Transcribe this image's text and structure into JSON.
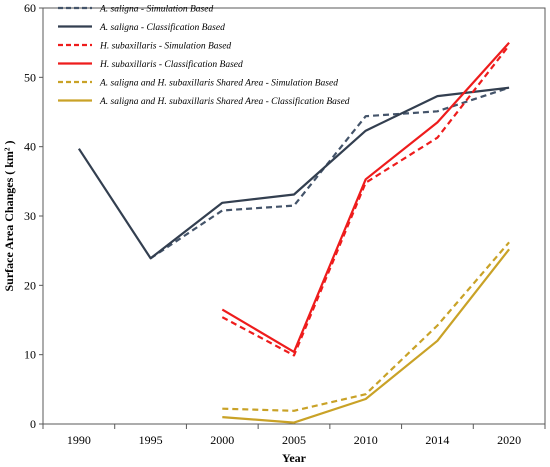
{
  "chart_data": {
    "type": "line",
    "xlabel": "Year",
    "ylabel": "Surface Area Changes ( km² )",
    "categories": [
      "1990",
      "1995",
      "2000",
      "2005",
      "2010",
      "2014",
      "2020"
    ],
    "ylim": [
      0,
      60
    ],
    "yticks": [
      "0",
      "10",
      "20",
      "30",
      "40",
      "50",
      "60"
    ],
    "grid": false,
    "legend_position": "top-left",
    "series": [
      {
        "name_species": "A. saligna",
        "name_suffix": " - Simulation Based",
        "color": "#44546a",
        "dash": "dashed",
        "values": [
          null,
          23.9,
          30.8,
          31.5,
          44.4,
          45.1,
          48.5
        ]
      },
      {
        "name_species": "A. saligna",
        "name_suffix": " - Classification Based",
        "color": "#333f50",
        "dash": "solid",
        "values": [
          39.7,
          23.9,
          31.9,
          33.1,
          42.3,
          47.3,
          48.5
        ]
      },
      {
        "name_species": "H. subaxillaris",
        "name_suffix": " - Simulation Based",
        "color": "#ee1c1c",
        "dash": "dashed",
        "values": [
          null,
          null,
          15.4,
          9.9,
          34.8,
          41.3,
          54.6
        ]
      },
      {
        "name_species": "H. subaxillaris",
        "name_suffix": " - Classification Based",
        "color": "#ee1c1c",
        "dash": "solid",
        "values": [
          null,
          null,
          16.5,
          10.4,
          35.3,
          43.5,
          55.0
        ]
      },
      {
        "name_species": "A. saligna and H. subaxillaris",
        "name_suffix": " Shared Area - Simulation Based",
        "color": "#c9a227",
        "dash": "dashed",
        "values": [
          null,
          null,
          2.2,
          1.9,
          4.3,
          14.2,
          26.2
        ]
      },
      {
        "name_species": "A. saligna and H. subaxillaris",
        "name_suffix": " Shared Area - Classification Based",
        "color": "#c9a227",
        "dash": "solid",
        "values": [
          null,
          null,
          1.0,
          0.2,
          3.6,
          12.0,
          25.2
        ]
      }
    ]
  }
}
